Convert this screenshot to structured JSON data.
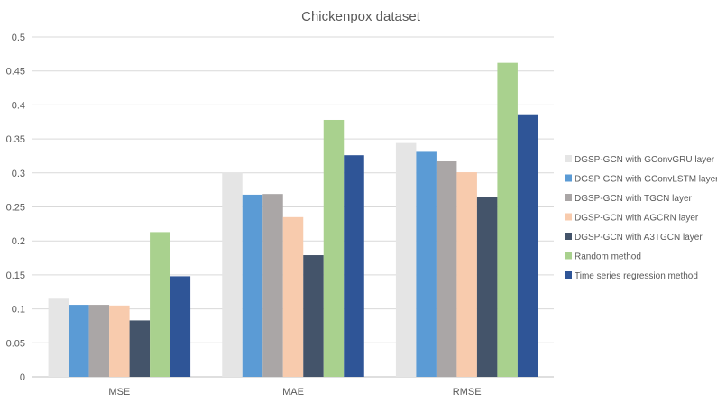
{
  "chart_data": {
    "type": "bar",
    "title": "Chickenpox dataset",
    "xlabel": "",
    "ylabel": "",
    "categories": [
      "MSE",
      "MAE",
      "RMSE"
    ],
    "ylim": [
      0,
      0.5
    ],
    "yticks": [
      "0",
      "0.05",
      "0.1",
      "0.15",
      "0.2",
      "0.25",
      "0.3",
      "0.35",
      "0.4",
      "0.45",
      "0.5"
    ],
    "grid": true,
    "legend_position": "right",
    "series": [
      {
        "name": "DGSP-GCN with GConvGRU layer",
        "color": "#e5e5e5",
        "values": [
          0.115,
          0.301,
          0.344
        ]
      },
      {
        "name": "DGSP-GCN with GConvLSTM layer",
        "color": "#5b9bd5",
        "values": [
          0.106,
          0.268,
          0.331
        ]
      },
      {
        "name": "DGSP-GCN with TGCN layer",
        "color": "#aaa6a6",
        "values": [
          0.106,
          0.269,
          0.317
        ]
      },
      {
        "name": "DGSP-GCN with AGCRN layer",
        "color": "#f8cbad",
        "values": [
          0.105,
          0.235,
          0.301
        ]
      },
      {
        "name": "DGSP-GCN with A3TGCN layer",
        "color": "#44546a",
        "values": [
          0.083,
          0.179,
          0.264
        ]
      },
      {
        "name": "Random method",
        "color": "#a9d18e",
        "values": [
          0.213,
          0.378,
          0.462
        ]
      },
      {
        "name": "Time series regression method",
        "color": "#2f5597",
        "values": [
          0.148,
          0.326,
          0.385
        ]
      }
    ]
  }
}
